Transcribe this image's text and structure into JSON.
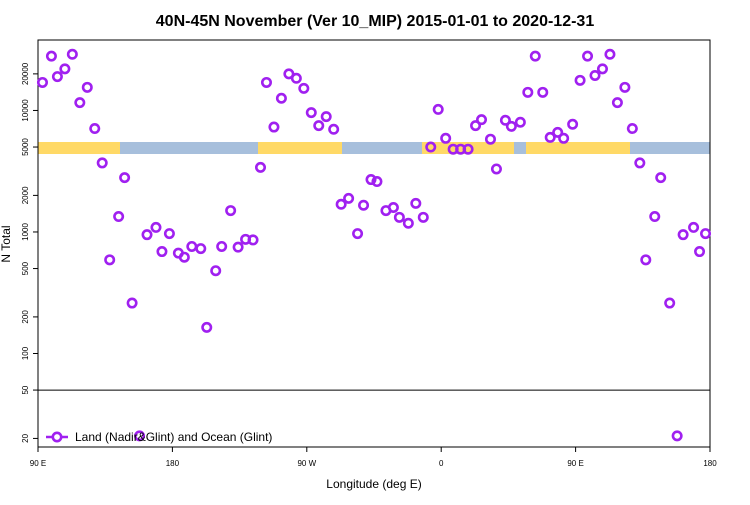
{
  "chart_data": {
    "type": "scatter",
    "title": "40N-45N November (Ver 10_MIP)   2015-01-01 to 2020-12-31",
    "x_label": "Longitude (deg E)",
    "y_label": "N Total",
    "log_y": true,
    "xlim": [
      90,
      540
    ],
    "xticks": [
      {
        "value": 90,
        "label": "90 E"
      },
      180,
      {
        "value": 270,
        "label": "90 W"
      },
      {
        "value": 360,
        "label": "0"
      },
      {
        "value": 450,
        "label": "90 E"
      },
      {
        "value": 540,
        "label": "180"
      }
    ],
    "ylim": [
      17,
      38000
    ],
    "yticks": [
      20,
      50,
      100,
      200,
      500,
      1000,
      2000,
      5000,
      10000,
      20000
    ],
    "reference_line": 50,
    "legend_position": "bottom-left",
    "series": [
      {
        "name": "Land (Nadir&Glint) and Ocean (Glint)",
        "color": "#a020f0",
        "x": [
          93,
          99,
          103,
          108,
          113,
          118,
          123,
          128,
          133,
          138,
          144,
          148,
          153,
          158,
          163,
          169,
          173,
          178,
          184,
          188,
          193,
          199,
          203,
          209,
          213,
          219,
          224,
          229,
          234,
          239,
          243,
          248,
          253,
          258,
          263,
          268,
          273,
          278,
          283,
          288,
          293,
          298,
          304,
          308,
          313,
          317,
          323,
          328,
          332,
          338,
          343,
          348,
          353,
          358,
          363,
          368,
          373,
          378,
          383,
          387,
          393,
          397,
          403,
          407,
          413,
          418,
          423,
          428,
          433,
          438,
          442,
          448,
          453,
          458,
          463,
          468,
          473,
          478,
          483,
          488,
          493,
          497,
          503,
          507,
          513,
          518,
          522,
          529,
          533,
          537
        ],
        "values": [
          17000,
          28000,
          19000,
          22000,
          29000,
          11600,
          15500,
          7100,
          3700,
          590,
          1340,
          2800,
          260,
          21,
          950,
          1090,
          690,
          970,
          670,
          620,
          760,
          730,
          164,
          480,
          760,
          1500,
          750,
          870,
          860,
          3400,
          17000,
          7300,
          12600,
          20000,
          18400,
          15200,
          9600,
          7500,
          8900,
          7000,
          1690,
          1890,
          970,
          1660,
          2700,
          2600,
          1500,
          1590,
          1320,
          1180,
          1720,
          1320,
          5000,
          10200,
          5900,
          4800,
          4800,
          4800,
          7500,
          8400,
          5800,
          3300,
          8300,
          7400,
          8000,
          14100,
          28000,
          14100,
          6000,
          6600,
          5900,
          7700,
          17700,
          28000,
          19400,
          22000,
          29000,
          11600,
          15500,
          7100,
          3700,
          590,
          1340,
          2800,
          260,
          21,
          950,
          1090,
          690,
          970
        ]
      }
    ]
  }
}
